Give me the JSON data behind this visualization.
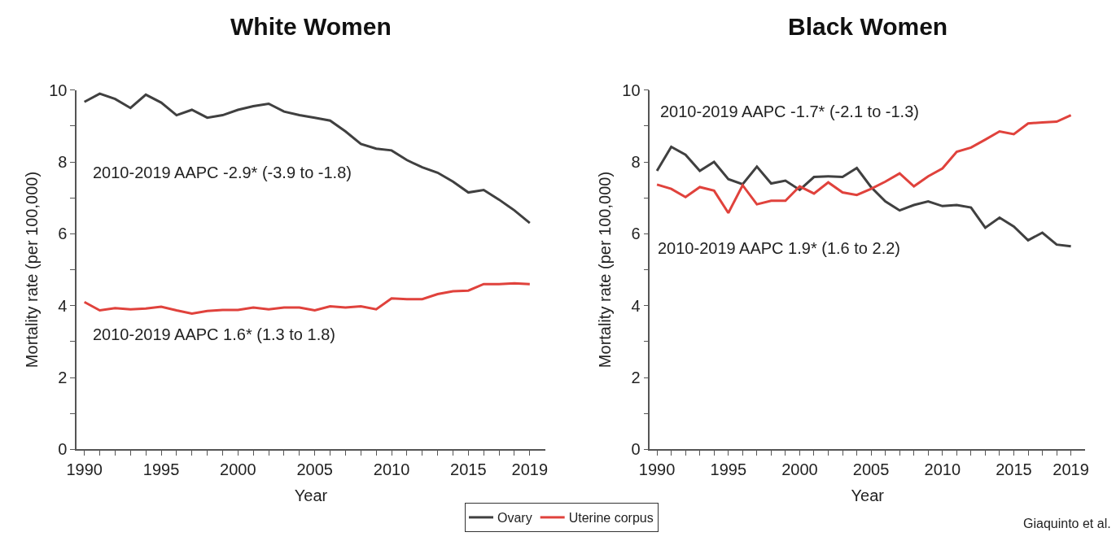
{
  "chart_data": [
    {
      "type": "line",
      "title": "White Women",
      "xlabel": "Year",
      "ylabel": "Mortality rate (per 100,000)",
      "x": [
        1990,
        1991,
        1992,
        1993,
        1994,
        1995,
        1996,
        1997,
        1998,
        1999,
        2000,
        2001,
        2002,
        2003,
        2004,
        2005,
        2006,
        2007,
        2008,
        2009,
        2010,
        2011,
        2012,
        2013,
        2014,
        2015,
        2016,
        2017,
        2018,
        2019
      ],
      "series": [
        {
          "name": "Ovary",
          "color": "#404040",
          "values": [
            9.67,
            9.9,
            9.75,
            9.5,
            9.87,
            9.65,
            9.3,
            9.45,
            9.23,
            9.3,
            9.45,
            9.55,
            9.62,
            9.4,
            9.3,
            9.23,
            9.15,
            8.85,
            8.5,
            8.37,
            8.32,
            8.05,
            7.85,
            7.7,
            7.45,
            7.15,
            7.22,
            6.95,
            6.65,
            6.3
          ]
        },
        {
          "name": "Uterine corpus",
          "color": "#e0423c",
          "values": [
            4.1,
            3.87,
            3.93,
            3.9,
            3.92,
            3.97,
            3.87,
            3.78,
            3.85,
            3.88,
            3.88,
            3.95,
            3.9,
            3.95,
            3.95,
            3.87,
            3.98,
            3.95,
            3.98,
            3.9,
            4.2,
            4.18,
            4.18,
            4.32,
            4.4,
            4.42,
            4.6,
            4.6,
            4.62,
            4.6
          ]
        }
      ],
      "xlim": [
        1989.5,
        2020
      ],
      "ylim": [
        0,
        10
      ],
      "xticks": [
        1990,
        {
          "value": 1991,
          "label": null
        },
        {
          "value": 1992,
          "label": null
        },
        {
          "value": 1993,
          "label": null
        },
        {
          "value": 1994,
          "label": null
        },
        1995,
        {
          "value": 1996,
          "label": null
        },
        {
          "value": 1997,
          "label": null
        },
        {
          "value": 1998,
          "label": null
        },
        {
          "value": 1999,
          "label": null
        },
        2000,
        {
          "value": 2001,
          "label": null
        },
        {
          "value": 2002,
          "label": null
        },
        {
          "value": 2003,
          "label": null
        },
        {
          "value": 2004,
          "label": null
        },
        2005,
        {
          "value": 2006,
          "label": null
        },
        {
          "value": 2007,
          "label": null
        },
        {
          "value": 2008,
          "label": null
        },
        {
          "value": 2009,
          "label": null
        },
        2010,
        {
          "value": 2011,
          "label": null
        },
        {
          "value": 2012,
          "label": null
        },
        {
          "value": 2013,
          "label": null
        },
        {
          "value": 2014,
          "label": null
        },
        2015,
        {
          "value": 2016,
          "label": null
        },
        {
          "value": 2017,
          "label": null
        },
        {
          "value": 2018,
          "label": null
        },
        2019
      ],
      "yticks": [
        0,
        {
          "value": 1,
          "label": null
        },
        2,
        {
          "value": 3,
          "label": null
        },
        4,
        {
          "value": 5,
          "label": null
        },
        6,
        {
          "value": 7,
          "label": null
        },
        8,
        {
          "value": 9,
          "label": null
        },
        10
      ],
      "annotations": [
        "2010-2019 AAPC -2.9* (-3.9 to -1.8)",
        "2010-2019 AAPC 1.6* (1.3 to 1.8)"
      ],
      "legend": "bottom",
      "marker": "none",
      "line_style": "solid"
    },
    {
      "type": "line",
      "title": "Black Women",
      "xlabel": "Year",
      "ylabel": "Mortality rate (per 100,000)",
      "x": [
        1990,
        1991,
        1992,
        1993,
        1994,
        1995,
        1996,
        1997,
        1998,
        1999,
        2000,
        2001,
        2002,
        2003,
        2004,
        2005,
        2006,
        2007,
        2008,
        2009,
        2010,
        2011,
        2012,
        2013,
        2014,
        2015,
        2016,
        2017,
        2018,
        2019
      ],
      "series": [
        {
          "name": "Ovary",
          "color": "#404040",
          "values": [
            7.75,
            8.42,
            8.2,
            7.75,
            8.0,
            7.52,
            7.38,
            7.87,
            7.4,
            7.48,
            7.22,
            7.58,
            7.6,
            7.58,
            7.83,
            7.3,
            6.9,
            6.65,
            6.8,
            6.9,
            6.77,
            6.8,
            6.73,
            6.17,
            6.45,
            6.2,
            5.82,
            6.03,
            5.7,
            5.65
          ]
        },
        {
          "name": "Uterine corpus",
          "color": "#e0423c",
          "values": [
            7.37,
            7.25,
            7.02,
            7.3,
            7.2,
            6.58,
            7.35,
            6.82,
            6.92,
            6.92,
            7.32,
            7.12,
            7.43,
            7.15,
            7.08,
            7.25,
            7.45,
            7.68,
            7.32,
            7.6,
            7.82,
            8.28,
            8.4,
            8.62,
            8.85,
            8.77,
            9.07,
            9.1,
            9.12,
            9.3
          ]
        }
      ],
      "xlim": [
        1989.5,
        2020
      ],
      "ylim": [
        0,
        10
      ],
      "xticks": [
        1990,
        {
          "value": 1991,
          "label": null
        },
        {
          "value": 1992,
          "label": null
        },
        {
          "value": 1993,
          "label": null
        },
        {
          "value": 1994,
          "label": null
        },
        1995,
        {
          "value": 1996,
          "label": null
        },
        {
          "value": 1997,
          "label": null
        },
        {
          "value": 1998,
          "label": null
        },
        {
          "value": 1999,
          "label": null
        },
        2000,
        {
          "value": 2001,
          "label": null
        },
        {
          "value": 2002,
          "label": null
        },
        {
          "value": 2003,
          "label": null
        },
        {
          "value": 2004,
          "label": null
        },
        2005,
        {
          "value": 2006,
          "label": null
        },
        {
          "value": 2007,
          "label": null
        },
        {
          "value": 2008,
          "label": null
        },
        {
          "value": 2009,
          "label": null
        },
        2010,
        {
          "value": 2011,
          "label": null
        },
        {
          "value": 2012,
          "label": null
        },
        {
          "value": 2013,
          "label": null
        },
        {
          "value": 2014,
          "label": null
        },
        2015,
        {
          "value": 2016,
          "label": null
        },
        {
          "value": 2017,
          "label": null
        },
        {
          "value": 2018,
          "label": null
        },
        2019
      ],
      "yticks": [
        0,
        {
          "value": 1,
          "label": null
        },
        2,
        {
          "value": 3,
          "label": null
        },
        4,
        {
          "value": 5,
          "label": null
        },
        6,
        {
          "value": 7,
          "label": null
        },
        8,
        {
          "value": 9,
          "label": null
        },
        10
      ],
      "annotations": [
        "2010-2019 AAPC -1.7* (-2.1 to -1.3)",
        "2010-2019 AAPC 1.9* (1.6 to 2.2)",
        "Giaquinto et al."
      ],
      "legend": "bottom",
      "marker": "none",
      "line_style": "solid"
    }
  ]
}
